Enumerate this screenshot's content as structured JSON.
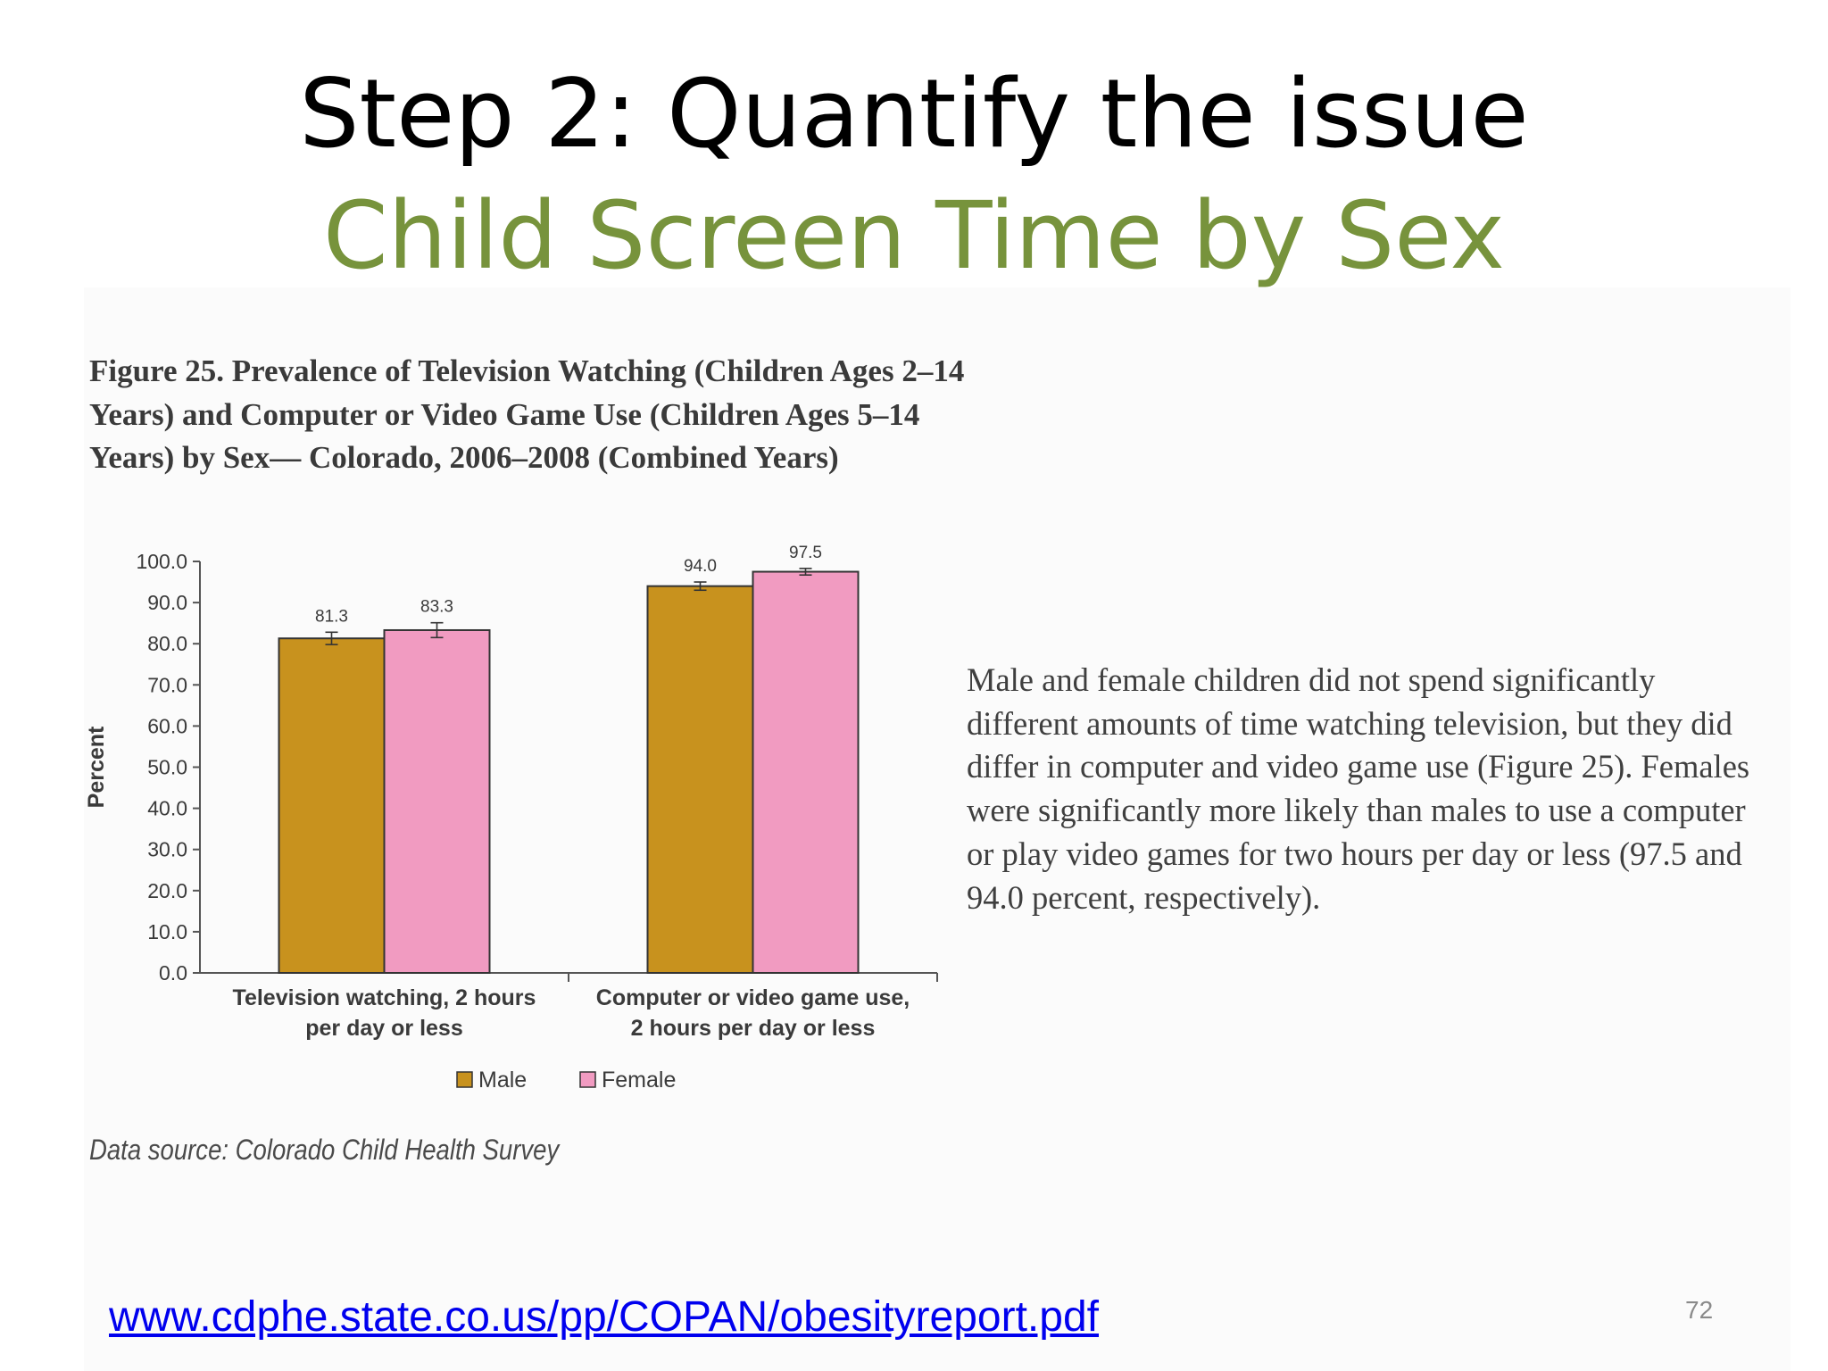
{
  "slide": {
    "title": "Step 2: Quantify the issue",
    "subtitle": "Child Screen Time by Sex",
    "figure_caption": "Figure 25. Prevalence of Television Watching (Children Ages 2–14 Years) and Computer or Video Game Use (Children Ages 5–14 Years) by Sex— Colorado, 2006–2008 (Combined Years)",
    "data_source": "Data source: Colorado Child Health Survey",
    "body_text": "Male and female children did not spend significantly different amounts of time watching television, but they did differ in computer and video game use (Figure 25). Females were significantly more likely than males to use a computer or play video games for two hours per day or less (97.5 and 94.0 percent, respectively).",
    "link": "www.cdphe.state.co.us/pp/COPAN/obesityreport.pdf",
    "page_number": "72"
  },
  "colors": {
    "male": "#c8921e",
    "female": "#f19bc1",
    "subtitle": "#77933c",
    "link": "#0000ee"
  },
  "chart_data": {
    "type": "bar",
    "categories": [
      [
        "Television watching, 2 hours",
        "per day or less"
      ],
      [
        "Computer or video game use,",
        "2 hours per day or less"
      ]
    ],
    "series": [
      {
        "name": "Male",
        "values": [
          81.3,
          94.0
        ],
        "labels": [
          "81.3",
          "94.0"
        ],
        "error": [
          1.5,
          1.0
        ]
      },
      {
        "name": "Female",
        "values": [
          83.3,
          97.5
        ],
        "labels": [
          "83.3",
          "97.5"
        ],
        "error": [
          1.8,
          0.8
        ]
      }
    ],
    "ylabel": "Percent",
    "ylim": [
      0,
      100
    ],
    "yticks": [
      "0.0",
      "10.0",
      "20.0",
      "30.0",
      "40.0",
      "50.0",
      "60.0",
      "70.0",
      "80.0",
      "90.0",
      "100.0"
    ],
    "legend_position": "bottom",
    "grid": false
  }
}
